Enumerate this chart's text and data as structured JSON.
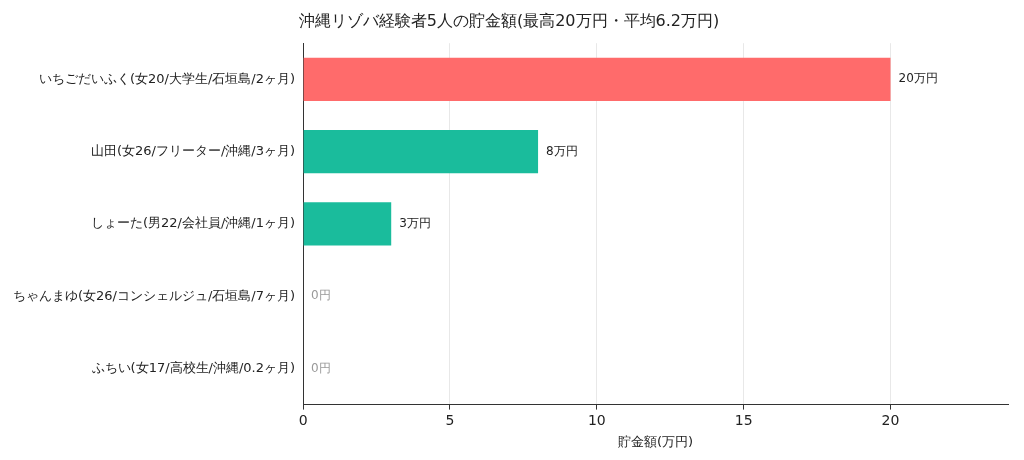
{
  "chart_data": {
    "type": "bar",
    "orientation": "horizontal",
    "title": "沖縄リゾバ経験者5人の貯金額(最高20万円・平均6.2万円)",
    "xlabel": "貯金額(万円)",
    "categories": [
      "いちごだいふく(女20/大学生/石垣島/2ヶ月)",
      "山田(女26/フリーター/沖縄/3ヶ月)",
      "しょーた(男22/会社員/沖縄/1ヶ月)",
      "ちゃんまゆ(女26/コンシェルジュ/石垣島/7ヶ月)",
      "ふちい(女17/高校生/沖縄/0.2ヶ月)"
    ],
    "values": [
      20,
      8,
      3,
      0,
      0
    ],
    "colors": [
      "#ff6b6b",
      "#1abc9c",
      "#1abc9c",
      "#1abc9c",
      "#1abc9c"
    ],
    "value_labels": [
      "20万円",
      "8万円",
      "3万円",
      "0円",
      "0円"
    ],
    "xlim": [
      0,
      24
    ],
    "xticks": [
      0,
      5,
      10,
      15,
      20
    ],
    "grid": "x",
    "legend": false
  }
}
